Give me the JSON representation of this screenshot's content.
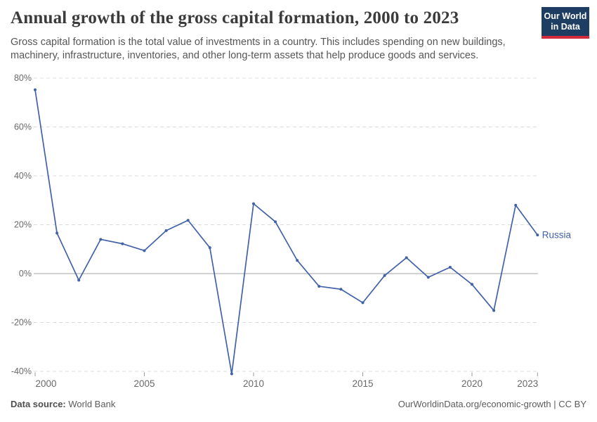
{
  "header": {
    "title": "Annual growth of the gross capital formation, 2000 to 2023",
    "subtitle": "Gross capital formation is the total value of investments in a country. This includes spending on new buildings, machinery, infrastructure, inventories, and other long-term assets that help produce goods and services.",
    "logo": {
      "line1": "Our World",
      "line2": "in Data"
    }
  },
  "footer": {
    "source_label": "Data source:",
    "source_value": " World Bank",
    "credit": "OurWorldinData.org/economic-growth | CC BY"
  },
  "colors": {
    "line": "#4262a8",
    "gridline": "#dcdcdc",
    "zero_line": "#a3a3a3",
    "axis_text": "#696969",
    "tick": "#999999",
    "logo_navy": "#1d3d63",
    "logo_red": "#d22b3e"
  },
  "chart_data": {
    "type": "line",
    "title": "Annual growth of the gross capital formation, 2000 to 2023",
    "xlabel": "",
    "ylabel": "",
    "unit": "%",
    "x": [
      2000,
      2001,
      2002,
      2003,
      2004,
      2005,
      2006,
      2007,
      2008,
      2009,
      2010,
      2011,
      2012,
      2013,
      2014,
      2015,
      2016,
      2017,
      2018,
      2019,
      2020,
      2021,
      2022,
      2023
    ],
    "series": [
      {
        "name": "Russia",
        "values": [
          75.2,
          16.6,
          -2.7,
          14.0,
          12.2,
          9.4,
          17.6,
          21.8,
          10.6,
          -41.0,
          28.6,
          21.2,
          5.4,
          -5.2,
          -6.4,
          -11.9,
          -0.8,
          6.5,
          -1.5,
          2.6,
          -4.4,
          -15.1,
          28.0,
          15.8
        ]
      }
    ],
    "ylim": [
      -43,
      80
    ],
    "yticks": [
      80,
      60,
      40,
      20,
      0,
      -20,
      -40
    ],
    "xticks": [
      2000,
      2005,
      2010,
      2015,
      2020,
      2023
    ],
    "grid": "horizontal-dashed",
    "legend_position": "end-of-line-label"
  }
}
